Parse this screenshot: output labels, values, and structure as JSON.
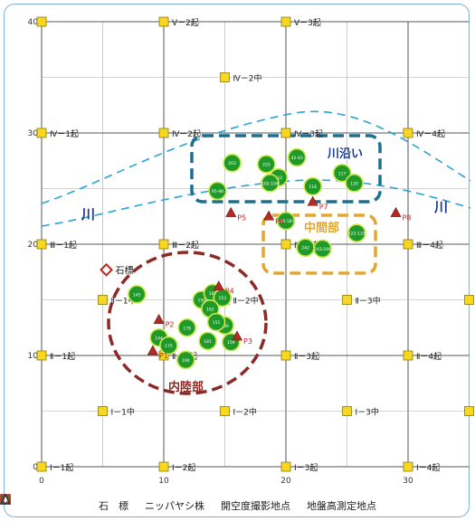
{
  "axes": {
    "x_ticks": [
      "0",
      "10",
      "20",
      "30"
    ],
    "y_ticks": [
      "0",
      "10",
      "20",
      "30",
      "40"
    ],
    "x_range": [
      0,
      35
    ],
    "y_range": [
      0,
      40
    ]
  },
  "grid_points": [
    {
      "x": 0,
      "y": 40,
      "label": ""
    },
    {
      "x": 10,
      "y": 40,
      "label": "Ⅴ－2起"
    },
    {
      "x": 20,
      "y": 40,
      "label": "Ⅴ－3起"
    },
    {
      "x": 15,
      "y": 35,
      "label": "Ⅳ－2中"
    },
    {
      "x": 0,
      "y": 30,
      "label": "Ⅳ－1起"
    },
    {
      "x": 10,
      "y": 30,
      "label": "Ⅳ－2起"
    },
    {
      "x": 20,
      "y": 30,
      "label": "Ⅳ－3起"
    },
    {
      "x": 30,
      "y": 30,
      "label": "Ⅳ－4起"
    },
    {
      "x": 0,
      "y": 20,
      "label": "Ⅲ－1起"
    },
    {
      "x": 10,
      "y": 20,
      "label": "Ⅲ－2起"
    },
    {
      "x": 20,
      "y": 20,
      "label": "Ⅲ－3起"
    },
    {
      "x": 30,
      "y": 20,
      "label": "Ⅲ－4起"
    },
    {
      "x": 5,
      "y": 15,
      "label": "Ⅱ－1中"
    },
    {
      "x": 15,
      "y": 15,
      "label": "Ⅱ－2中"
    },
    {
      "x": 25,
      "y": 15,
      "label": "Ⅱ－3中"
    },
    {
      "x": 35,
      "y": 15,
      "label": "Ⅱ－4中"
    },
    {
      "x": 0,
      "y": 10,
      "label": "Ⅱ－1起"
    },
    {
      "x": 10,
      "y": 10,
      "label": "Ⅱ－2起"
    },
    {
      "x": 20,
      "y": 10,
      "label": "Ⅱ－3起"
    },
    {
      "x": 30,
      "y": 10,
      "label": "Ⅱ－4起"
    },
    {
      "x": 5,
      "y": 5,
      "label": "Ⅰ－1中"
    },
    {
      "x": 15,
      "y": 5,
      "label": "Ⅰ－2中"
    },
    {
      "x": 25,
      "y": 5,
      "label": "Ⅰ－3中"
    },
    {
      "x": 35,
      "y": 5,
      "label": "Ⅰ－4中"
    },
    {
      "x": 0,
      "y": 0,
      "label": "Ⅰ－1起"
    },
    {
      "x": 10,
      "y": 0,
      "label": "Ⅰ－2起"
    },
    {
      "x": 20,
      "y": 0,
      "label": "Ⅰ－3起"
    },
    {
      "x": 30,
      "y": 0,
      "label": "Ⅰ－4起"
    }
  ],
  "palms": [
    {
      "x": 15.6,
      "y": 27.3,
      "label": "203"
    },
    {
      "x": 18.4,
      "y": 27.2,
      "label": "225"
    },
    {
      "x": 20.9,
      "y": 27.8,
      "label": "42-43"
    },
    {
      "x": 19.4,
      "y": 26.0,
      "label": "112"
    },
    {
      "x": 18.7,
      "y": 25.5,
      "label": "102-104"
    },
    {
      "x": 22.2,
      "y": 25.2,
      "label": "116"
    },
    {
      "x": 24.6,
      "y": 26.4,
      "label": "117"
    },
    {
      "x": 25.6,
      "y": 25.5,
      "label": "120"
    },
    {
      "x": 14.4,
      "y": 24.8,
      "label": "95-98"
    },
    {
      "x": 20.0,
      "y": 22.1,
      "label": "186-187"
    },
    {
      "x": 21.6,
      "y": 19.7,
      "label": "242"
    },
    {
      "x": 23.0,
      "y": 19.6,
      "label": "243-246"
    },
    {
      "x": 25.8,
      "y": 21.0,
      "label": "122-133"
    },
    {
      "x": 7.8,
      "y": 15.5,
      "label": "145"
    },
    {
      "x": 13.1,
      "y": 15.0,
      "label": "158"
    },
    {
      "x": 14.0,
      "y": 15.6,
      "label": "165"
    },
    {
      "x": 14.8,
      "y": 15.2,
      "label": "153"
    },
    {
      "x": 13.8,
      "y": 14.2,
      "label": "162"
    },
    {
      "x": 15.0,
      "y": 12.7,
      "label": "149"
    },
    {
      "x": 14.3,
      "y": 13.0,
      "label": "151"
    },
    {
      "x": 11.9,
      "y": 12.5,
      "label": "178"
    },
    {
      "x": 9.6,
      "y": 11.6,
      "label": "144"
    },
    {
      "x": 10.4,
      "y": 10.9,
      "label": "175"
    },
    {
      "x": 13.6,
      "y": 11.3,
      "label": "181"
    },
    {
      "x": 15.5,
      "y": 11.2,
      "label": "159"
    },
    {
      "x": 11.8,
      "y": 9.6,
      "label": "190"
    }
  ],
  "photo_points": [
    {
      "x": 15.5,
      "y": 22.8,
      "label": "P5"
    },
    {
      "x": 18.6,
      "y": 22.5,
      "label": "P6"
    },
    {
      "x": 22.2,
      "y": 23.8,
      "label": "P7"
    },
    {
      "x": 29.0,
      "y": 22.8,
      "label": "P8"
    },
    {
      "x": 14.5,
      "y": 16.2,
      "label": "P4"
    },
    {
      "x": 9.6,
      "y": 13.2,
      "label": "P2"
    },
    {
      "x": 16.0,
      "y": 11.7,
      "label": "P3"
    },
    {
      "x": 9.1,
      "y": 10.4,
      "label": "P1"
    }
  ],
  "stone_marker": {
    "x": 5.3,
    "y": 17.7,
    "label": "石標"
  },
  "zones": [
    {
      "key": "river",
      "label": "川沿い"
    },
    {
      "key": "middle",
      "label": "中間部"
    },
    {
      "key": "inland",
      "label": "内陸部"
    }
  ],
  "river_labels": [
    "川",
    "川"
  ],
  "legend": [
    {
      "symbol": "diamond",
      "label": "石　標"
    },
    {
      "symbol": "circle",
      "label": "ニッパヤシ株"
    },
    {
      "symbol": "square",
      "label": "開空度撮影地点"
    },
    {
      "symbol": "triangle",
      "label": "地盤高測定地点"
    }
  ],
  "colors": {
    "grid": "#555555",
    "point_fill": "#f7d71f",
    "palm_fill": "#1f9a2a",
    "palm_ring": "#cfe84a",
    "river": "#2aa3d6",
    "river_zone": "#1d6f8f",
    "middle_zone": "#e3a72f",
    "inland_zone": "#8b2a26",
    "marker_red": "#b22b24"
  }
}
